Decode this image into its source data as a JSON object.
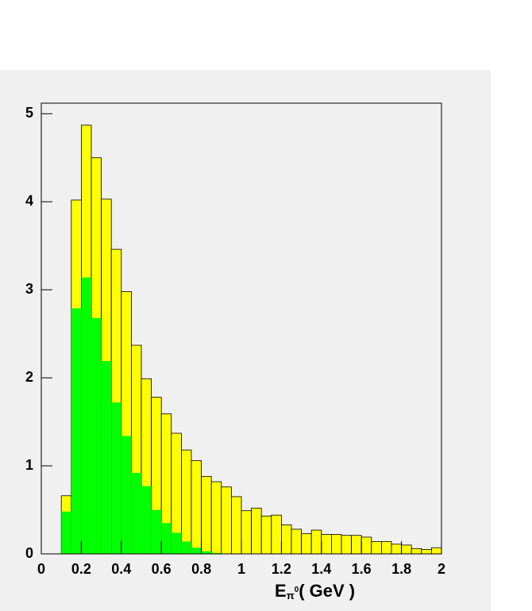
{
  "chart_data": {
    "type": "histogram",
    "bins": [
      0,
      0.05,
      0.1,
      0.15,
      0.2,
      0.25,
      0.3,
      0.35,
      0.4,
      0.45,
      0.5,
      0.55,
      0.6,
      0.65,
      0.7,
      0.75,
      0.8,
      0.85,
      0.9,
      0.95,
      1,
      1.05,
      1.1,
      1.15,
      1.2,
      1.25,
      1.3,
      1.35,
      1.4,
      1.45,
      1.5,
      1.55,
      1.6,
      1.65,
      1.7,
      1.75,
      1.8,
      1.85,
      1.9,
      1.95,
      2
    ],
    "series": [
      {
        "color": "#ffff00",
        "values": [
          0,
          0,
          0.66,
          4.02,
          4.87,
          4.5,
          4.03,
          3.46,
          2.98,
          2.37,
          1.99,
          1.78,
          1.59,
          1.37,
          1.18,
          1.06,
          0.88,
          0.82,
          0.76,
          0.65,
          0.49,
          0.52,
          0.43,
          0.44,
          0.33,
          0.28,
          0.23,
          0.27,
          0.22,
          0.22,
          0.21,
          0.21,
          0.19,
          0.14,
          0.14,
          0.11,
          0.1,
          0.06,
          0.05,
          0.07
        ]
      },
      {
        "color": "#00ff00",
        "values": [
          0,
          0,
          0.48,
          2.79,
          3.14,
          2.68,
          2.19,
          1.72,
          1.34,
          0.92,
          0.77,
          0.5,
          0.35,
          0.24,
          0.14,
          0.07,
          0.03,
          0.01,
          0,
          0,
          0,
          0,
          0,
          0,
          0,
          0,
          0,
          0,
          0,
          0,
          0,
          0,
          0,
          0,
          0,
          0,
          0,
          0,
          0,
          0
        ]
      }
    ],
    "xlim": [
      0,
      2
    ],
    "xticks": [
      0,
      0.2,
      0.4,
      0.6,
      0.8,
      1,
      1.2,
      1.4,
      1.6,
      1.8,
      2
    ],
    "ylim": [
      0,
      5.12
    ],
    "yticks": [
      0,
      1,
      2,
      3,
      4,
      5
    ],
    "x_label": {
      "main": "E",
      "sub": "π",
      "sup": "0",
      "rest": "( GeV )"
    }
  }
}
